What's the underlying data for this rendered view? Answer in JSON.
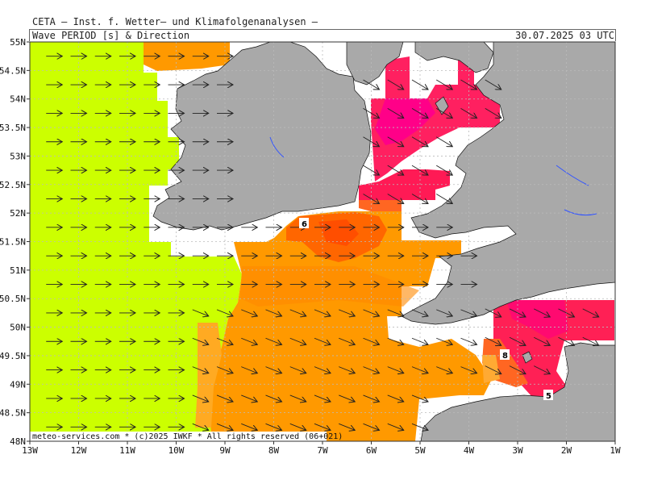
{
  "header": {
    "institute": "CETA — Inst. f. Wetter— und Klimafolgenanalysen —",
    "parameter": "Wave PERIOD [s] & Direction",
    "valid_time": "30.07.2025 03 UTC"
  },
  "credit": "meteo-services.com * (c)2025 IWKF * All rights reserved (06+021)",
  "axes": {
    "lon_labels": [
      "13W",
      "12W",
      "11W",
      "10W",
      "9W",
      "8W",
      "7W",
      "6W",
      "5W",
      "4W",
      "3W",
      "2W",
      "1W"
    ],
    "lat_labels": [
      "55N",
      "54.5N",
      "54N",
      "53.5N",
      "53N",
      "52.5N",
      "52N",
      "51.5N",
      "51N",
      "50.5N",
      "50N",
      "49.5N",
      "49N",
      "48.5N",
      "48N"
    ],
    "lon_range": [
      -13,
      -1
    ],
    "lat_range": [
      48,
      55
    ]
  },
  "contour_labels": [
    "6",
    "8",
    "5"
  ],
  "colors": {
    "land": "#a9a9a9",
    "period_lt5": "#ffffff",
    "period_long": "#ccff00",
    "period_orange": "#ff9900",
    "period_dark_orange": "#ff6600",
    "period_red": "#ff2060",
    "period_magenta": "#ff0088",
    "grid": "#bbbbbb"
  },
  "arrow_direction": "east"
}
